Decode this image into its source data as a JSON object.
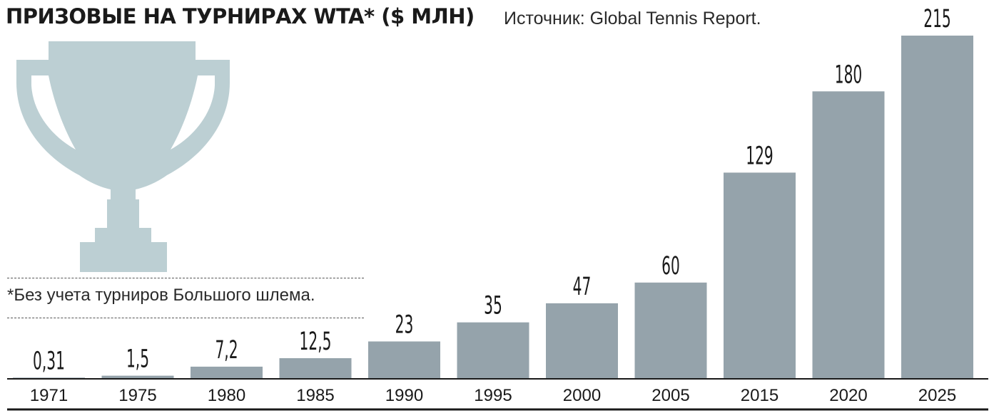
{
  "title": "ПРИЗОВЫЕ НА ТУРНИРАХ WTA* ($ МЛН)",
  "source": "Источник: Global Tennis Report.",
  "footnote": "*Без учета турниров Большого шлема.",
  "colors": {
    "bar": "#95a3ab",
    "trophy": "#bccfd3",
    "text": "#1a1a1a",
    "axis": "#1a1a1a"
  },
  "icon": "trophy-icon",
  "chart_data": {
    "type": "bar",
    "title": "ПРИЗОВЫЕ НА ТУРНИРАХ WTA* ($ МЛН)",
    "xlabel": "",
    "ylabel": "",
    "ylim": [
      0,
      215
    ],
    "grid": false,
    "categories": [
      "1971",
      "1975",
      "1980",
      "1985",
      "1990",
      "1995",
      "2000",
      "2005",
      "2015",
      "2020",
      "2025"
    ],
    "values": [
      0.31,
      1.5,
      7.2,
      12.5,
      23,
      35,
      47,
      60,
      129,
      180,
      215
    ],
    "value_labels": [
      "0,31",
      "1,5",
      "7,2",
      "12,5",
      "23",
      "35",
      "47",
      "60",
      "129",
      "180",
      "215"
    ]
  }
}
